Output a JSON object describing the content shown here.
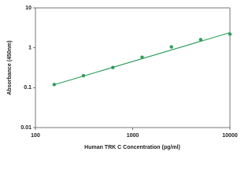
{
  "chart_data": {
    "type": "scatter",
    "x_label": "Human TRK C Concentration (pg/ml)",
    "y_label": "Absorbance (450nm)",
    "log_x": true,
    "log_y": true,
    "grid": false,
    "x": [
      156,
      312,
      625,
      1250,
      2500,
      5000,
      10000
    ],
    "series": [
      {
        "color": "#2e9e5b",
        "values": [
          0.12,
          0.2,
          0.32,
          0.58,
          1.05,
          1.6,
          2.2
        ]
      }
    ],
    "fit": {
      "color": "#2e9e5b",
      "x": [
        150,
        10000
      ],
      "values": [
        0.115,
        2.4
      ]
    },
    "xlim": [
      100,
      10000
    ],
    "xticks": [
      100,
      1000,
      10000
    ],
    "ylim": [
      0.01,
      10
    ],
    "yticks": [
      0.01,
      0.1,
      1,
      10
    ]
  }
}
